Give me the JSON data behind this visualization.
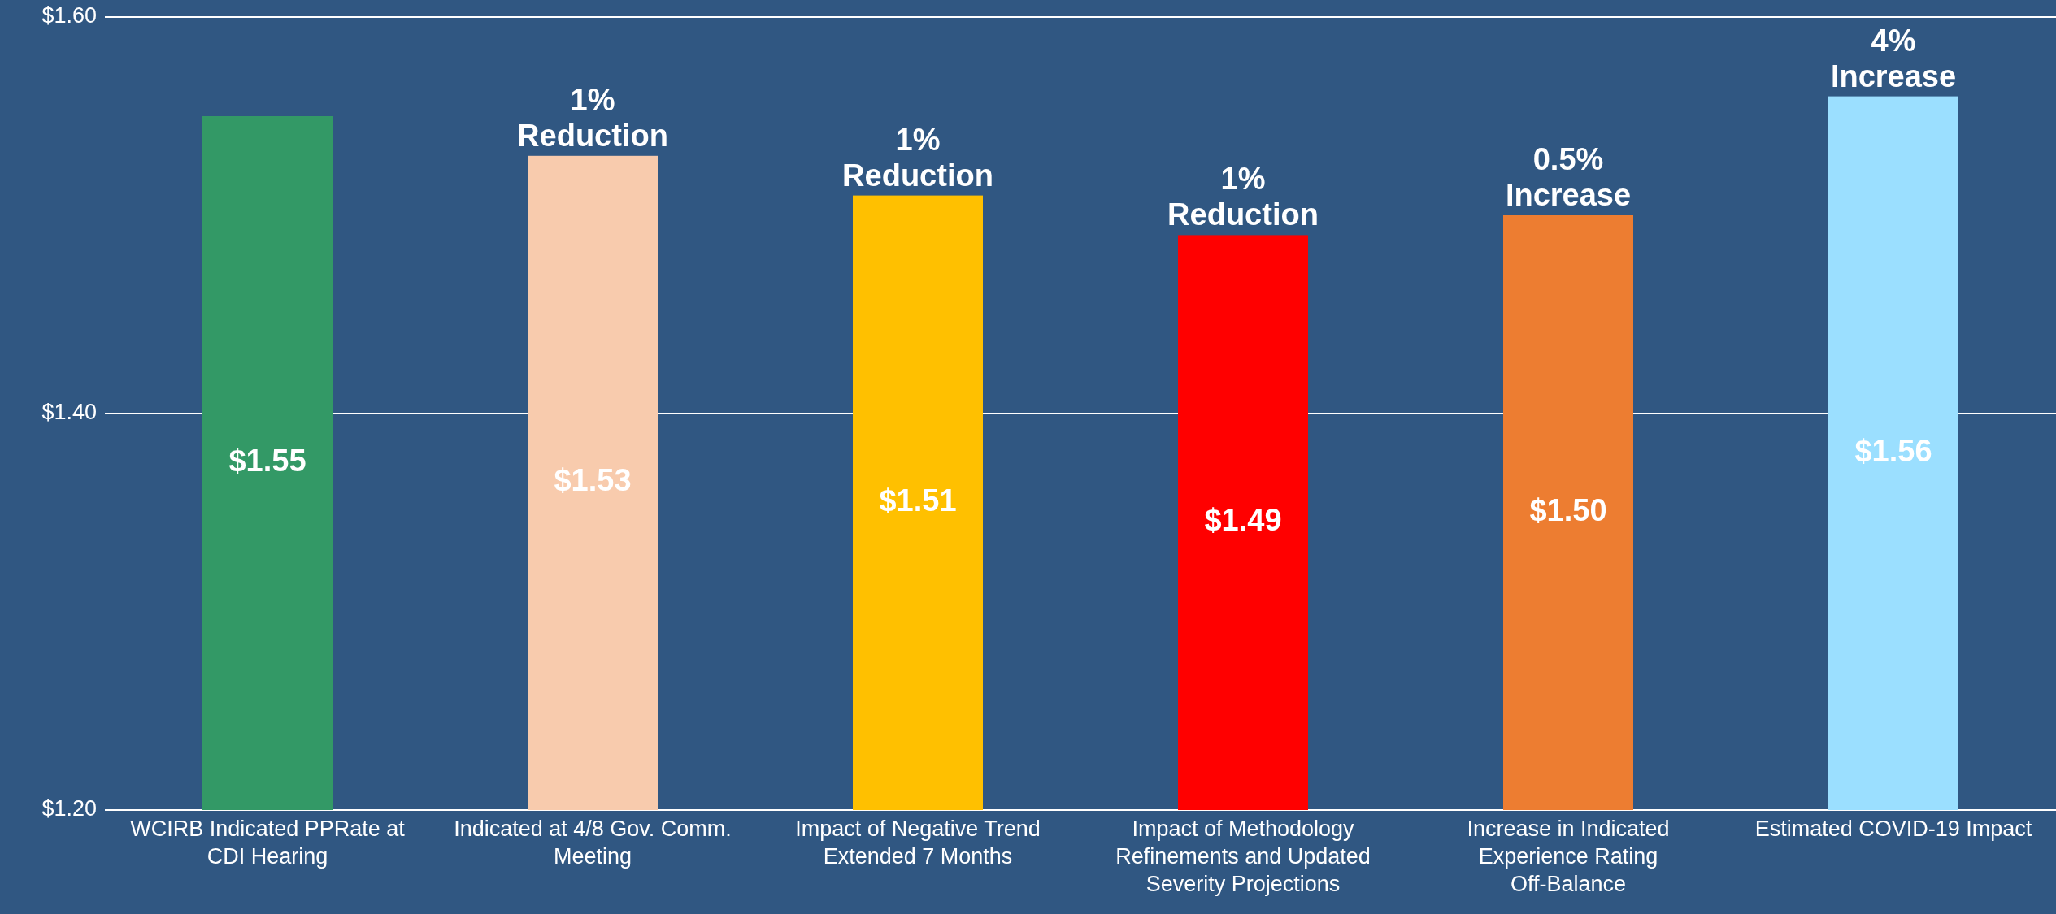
{
  "chart_data": {
    "type": "bar",
    "categories": [
      "WCIRB Indicated PPRate at CDI Hearing",
      "Indicated at 4/8 Gov. Comm. Meeting",
      "Impact of Negative Trend Extended 7 Months",
      "Impact of Methodology Refinements and Updated Severity Projections",
      "Increase in Indicated Experience Rating Off-Balance",
      "Estimated COVID-19 Impact"
    ],
    "values": [
      1.55,
      1.53,
      1.51,
      1.49,
      1.5,
      1.56
    ],
    "colors": [
      "#339966",
      "#f8cbad",
      "#ffc000",
      "#ff0000",
      "#ed7d31",
      "#9bdfff"
    ],
    "value_labels": [
      "$1.55",
      "$1.53",
      "$1.51",
      "$1.49",
      "$1.50",
      "$1.56"
    ],
    "ylim": [
      1.2,
      1.6
    ],
    "yticks": [
      {
        "value": 1.2,
        "label": "$1.20"
      },
      {
        "value": 1.4,
        "label": "$1.40"
      },
      {
        "value": 1.6,
        "label": "$1.60"
      }
    ],
    "grid": "y",
    "annotations": [
      {
        "text": "1% Reduction",
        "x": "Indicated at 4/8 Gov. Comm. Meeting",
        "y": 1.53
      },
      {
        "text": "1% Reduction",
        "x": "Impact of Negative Trend Extended 7 Months",
        "y": 1.51
      },
      {
        "text": "1% Reduction",
        "x": "Impact of Methodology Refinements and Updated Severity Projections",
        "y": 1.49
      },
      {
        "text": "0.5% Increase",
        "x": "Increase in Indicated Experience Rating Off-Balance",
        "y": 1.5
      },
      {
        "text": "4% Increase",
        "x": "Estimated COVID-19 Impact",
        "y": 1.56
      }
    ]
  }
}
